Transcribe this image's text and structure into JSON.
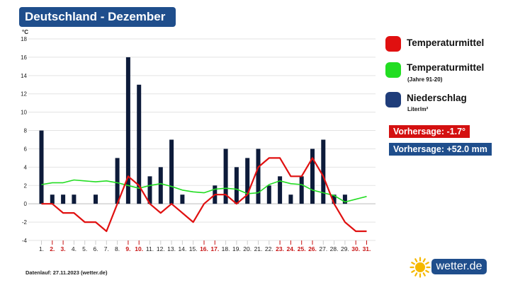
{
  "header": {
    "title": "Deutschland - Dezember"
  },
  "legend": {
    "items": [
      {
        "label": "Temperaturmittel",
        "sub": "",
        "color": "#e01010"
      },
      {
        "label": "Temperaturmittel",
        "sub": "(Jahre 91-20)",
        "color": "#22dd22"
      },
      {
        "label": "Niederschlag",
        "sub": "Liter/m²",
        "color": "#1f3d7a"
      }
    ]
  },
  "forecast": {
    "temperature": {
      "text": "Vorhersage: -1.7°",
      "color": "#d41010"
    },
    "precipitation": {
      "text": "Vorhersage: +52.0 mm",
      "color": "#1f4e8c"
    }
  },
  "footer": {
    "text": "Datenlauf: 27.11.2023 (wetter.de)"
  },
  "brand": {
    "name": "wetter.de",
    "sun_color": "#f5b800"
  },
  "chart_data": {
    "type": "bar",
    "unit": "°C",
    "ylim": [
      -4,
      18
    ],
    "yticks": [
      -4,
      -2,
      0,
      2,
      4,
      6,
      8,
      10,
      12,
      14,
      16,
      18
    ],
    "grid": true,
    "categories": [
      "1.",
      "2.",
      "3.",
      "4.",
      "5.",
      "6.",
      "7.",
      "8.",
      "9.",
      "10.",
      "11.",
      "12.",
      "13.",
      "14.",
      "15.",
      "16.",
      "17.",
      "18.",
      "19.",
      "20.",
      "21.",
      "22.",
      "23.",
      "24.",
      "25.",
      "26.",
      "27.",
      "28.",
      "29.",
      "30.",
      "31."
    ],
    "highlight_days": [
      "2.",
      "3.",
      "9.",
      "10.",
      "16.",
      "17.",
      "23.",
      "24.",
      "25.",
      "26.",
      "30.",
      "31."
    ],
    "highlight_color": "#c81414",
    "series": [
      {
        "name": "Niederschlag",
        "kind": "bar",
        "color": "#0d1b3a",
        "values": [
          8,
          1,
          1,
          1,
          0,
          1,
          0,
          5,
          16,
          13,
          3,
          4,
          7,
          1,
          0,
          0,
          2,
          6,
          4,
          5,
          6,
          2,
          3,
          1,
          3,
          6,
          7,
          1,
          1,
          0,
          0
        ]
      },
      {
        "name": "Temperaturmittel",
        "kind": "line",
        "color": "#e01010",
        "values": [
          0,
          0,
          -1,
          -1,
          -2,
          -2,
          -3,
          0,
          3,
          2,
          0,
          -1,
          0,
          -1,
          -2,
          0,
          1,
          1,
          0,
          1,
          4,
          5,
          5,
          3,
          3,
          5,
          3,
          0,
          -2,
          -3,
          -3
        ]
      },
      {
        "name": "Temperaturmittel (Jahre 91-20)",
        "kind": "line",
        "color": "#22dd22",
        "values": [
          2.1,
          2.3,
          2.3,
          2.6,
          2.5,
          2.4,
          2.5,
          2.3,
          2.0,
          1.7,
          2.0,
          2.2,
          1.9,
          1.5,
          1.3,
          1.2,
          1.6,
          1.7,
          1.6,
          1.1,
          1.2,
          2.1,
          2.5,
          2.2,
          2.1,
          1.5,
          1.2,
          0.9,
          0.2,
          0.5,
          0.8
        ]
      }
    ]
  }
}
